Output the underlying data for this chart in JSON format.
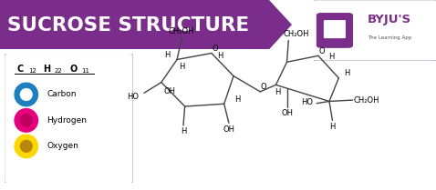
{
  "title": "SUCROSE STRUCTURE",
  "header_bg": "#7B2D8B",
  "header_text_color": "#FFFFFF",
  "body_bg": "#FFFFFF",
  "legend_items": [
    {
      "label": "Carbon",
      "color": "#1E7FBF",
      "inner": "#FFFFFF"
    },
    {
      "label": "Hydrogen",
      "color": "#E6007E",
      "inner": "#C0005E"
    },
    {
      "label": "Oxygen",
      "color": "#FFD700",
      "inner": "#B8860B"
    }
  ],
  "byju_color": "#7B2D8B",
  "byju_text": "BYJU'S",
  "byju_sub": "The Learning App",
  "fig_w": 4.78,
  "fig_h": 2.09,
  "dpi": 100
}
